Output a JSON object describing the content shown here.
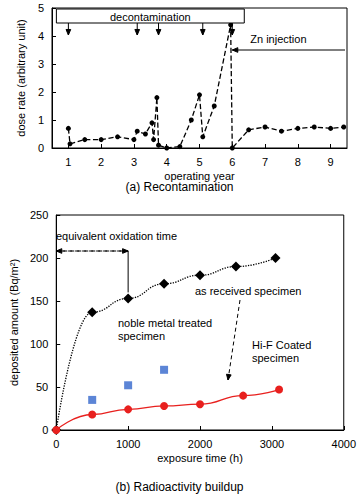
{
  "chart_data": [
    {
      "type": "line",
      "title": "(a) Recontamination",
      "xlabel": "operating year",
      "ylabel": "dose rate (arbitrary unit)",
      "xlim": [
        0.5,
        9.5
      ],
      "xticks": [
        1,
        2,
        3,
        4,
        5,
        6,
        7,
        8,
        9
      ],
      "ylim": [
        0,
        5
      ],
      "yticks": [
        0,
        1,
        2,
        3,
        4,
        5
      ],
      "grid": false,
      "series": [
        {
          "x": [
            1.0,
            1.05,
            1.5,
            2.0,
            2.5,
            3.0,
            3.1,
            3.35,
            3.55,
            3.6,
            3.7,
            3.75,
            4.0,
            4.4,
            4.75,
            5.0,
            5.1,
            5.45,
            5.95,
            6.0,
            6.5,
            7.0,
            7.5,
            8.0,
            8.5,
            9.0,
            9.4
          ],
          "values": [
            0.7,
            0.15,
            0.3,
            0.3,
            0.4,
            0.3,
            0.6,
            0.5,
            0.9,
            0.3,
            1.8,
            0.1,
            0.0,
            0.05,
            1.0,
            1.9,
            0.4,
            1.5,
            4.4,
            0.0,
            0.65,
            0.75,
            0.6,
            0.7,
            0.75,
            0.7,
            0.75
          ],
          "color": "#000000",
          "marker": "circle",
          "line_style": "dashed"
        }
      ],
      "annotations": [
        {
          "text": "decontamination",
          "x": [
            1.0,
            3.1,
            3.75,
            5.1,
            6.0
          ]
        },
        {
          "text": "Zn injection",
          "x": 6.0
        }
      ]
    },
    {
      "type": "scatter",
      "title": "(b) Radioactivity buildup",
      "xlabel": "exposure time (h)",
      "ylabel": "deposited amount (Bq/m²)",
      "xlim": [
        0,
        4000
      ],
      "xticks": [
        0,
        1000,
        2000,
        3000,
        4000
      ],
      "ylim": [
        0,
        250
      ],
      "yticks": [
        0,
        50,
        100,
        150,
        200,
        250
      ],
      "grid": false,
      "series": [
        {
          "name": "as received specimen",
          "type": "line",
          "x": [
            0,
            500,
            1000,
            1500,
            2000,
            2500,
            3050
          ],
          "values": [
            0,
            137,
            153,
            170,
            180,
            190,
            200
          ],
          "color": "#000000",
          "marker": "diamond",
          "line_style": "dotted"
        },
        {
          "name": "noble metal treated\nspecimen",
          "type": "scatter",
          "x": [
            500,
            1000,
            1500
          ],
          "values": [
            35,
            52,
            70
          ],
          "color": "#3366cc",
          "marker": "square"
        },
        {
          "name": "Hi-F Coated\nspecimen",
          "type": "line",
          "x": [
            0,
            500,
            1000,
            1500,
            2000,
            2600,
            3100
          ],
          "values": [
            0,
            18,
            24,
            28,
            30,
            40,
            47
          ],
          "color": "#e8201e",
          "marker": "circle",
          "line_style": "solid"
        }
      ],
      "annotations": [
        {
          "text": "equivalent oxidation time",
          "x": [
            0,
            1000
          ]
        }
      ]
    }
  ]
}
